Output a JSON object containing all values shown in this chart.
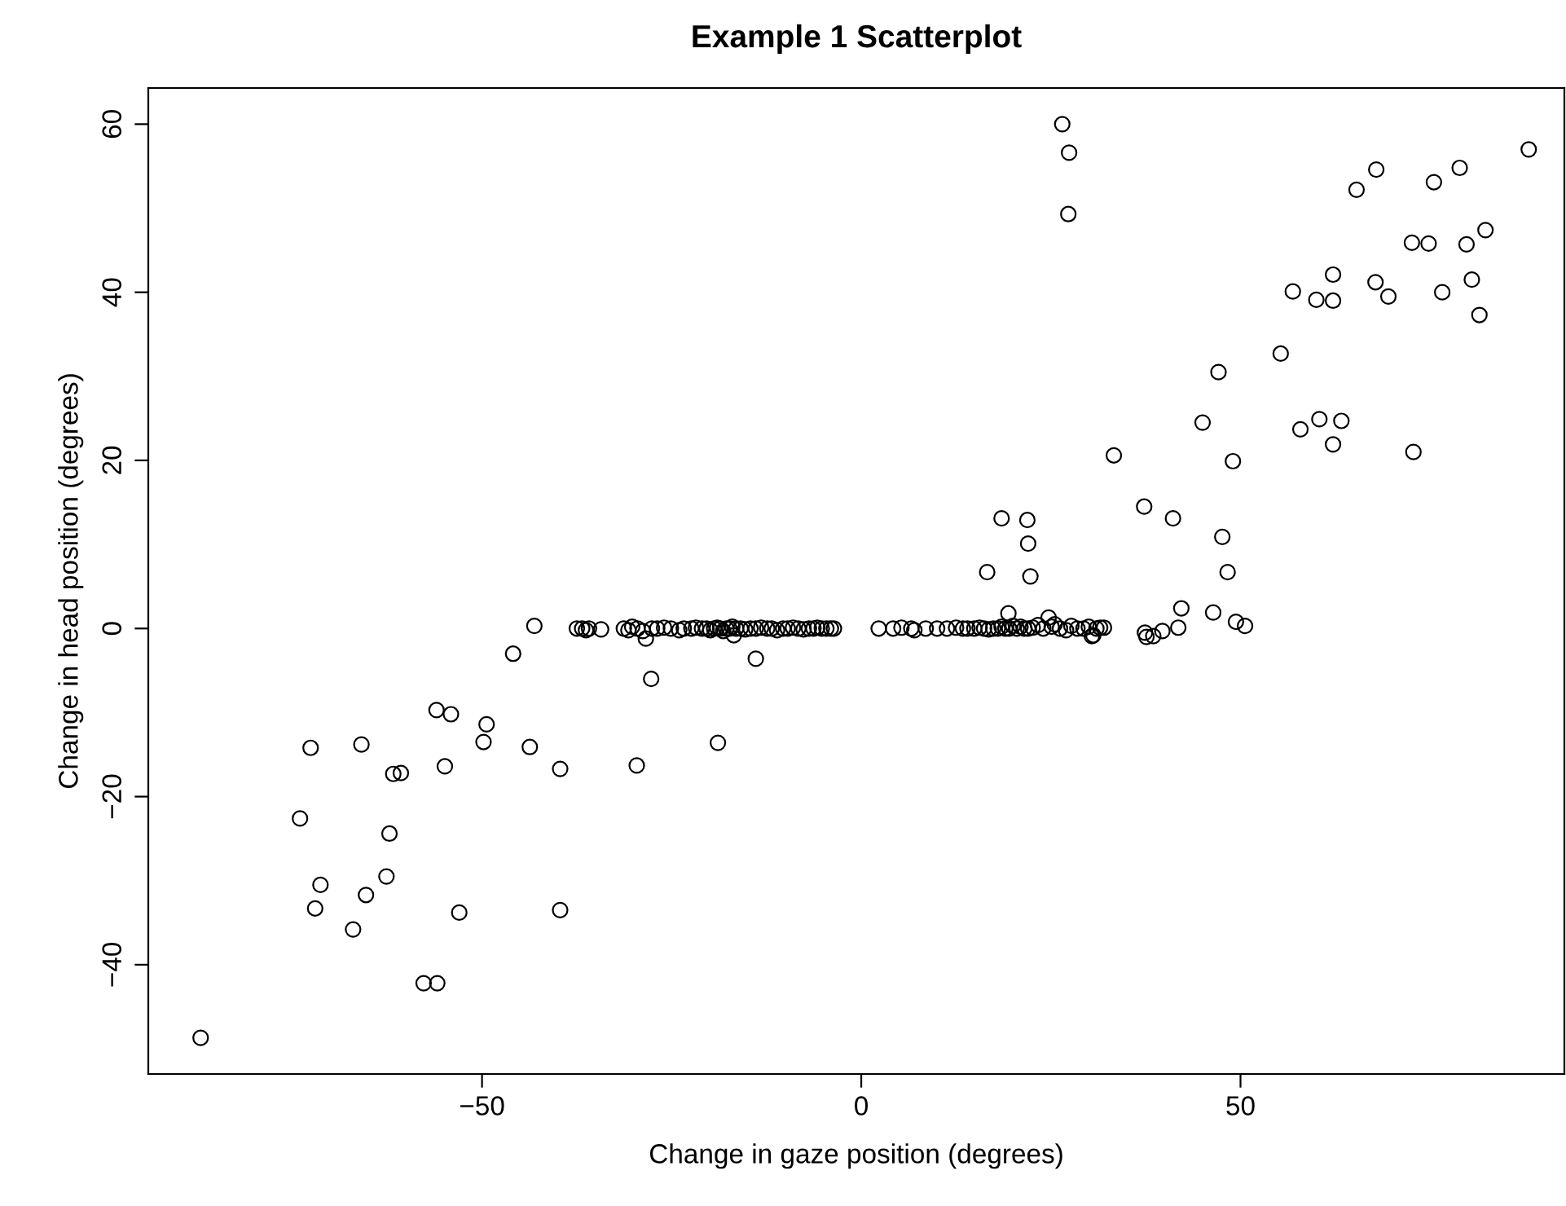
{
  "chart_data": {
    "type": "scatter",
    "title": "Example 1 Scatterplot",
    "xlabel": "Change in gaze position (degrees)",
    "ylabel": "Change in head position (degrees)",
    "xlim": [
      -94.0,
      92.7
    ],
    "ylim": [
      -53.0,
      64.3
    ],
    "xticks": [
      {
        "value": -50,
        "label": "−50"
      },
      0,
      50
    ],
    "yticks": [
      {
        "value": -40,
        "label": "−40"
      },
      {
        "value": -20,
        "label": "−20"
      },
      0,
      20,
      40,
      60
    ],
    "grid": false,
    "marker": "circle",
    "series": [
      {
        "color": "#000000",
        "x": [
          -87.1,
          -72.6,
          -65.9,
          -74.0,
          -71.3,
          -72.0,
          -65.3,
          -67.0,
          -62.6,
          -62.2,
          -61.7,
          -60.7,
          -57.7,
          -55.9,
          -56.0,
          -54.1,
          -54.9,
          -53.0,
          -49.4,
          -49.8,
          -43.7,
          -39.7,
          -39.7,
          -45.9,
          -43.1,
          -37.5,
          -36.8,
          -36.3,
          -35.9,
          -34.3,
          -30.7,
          -29.6,
          -28.4,
          -27.7,
          -18.9,
          -16.8,
          -13.9,
          -31.3,
          -30.2,
          -29.5,
          -28.8,
          -27.6,
          -26.9,
          -26.0,
          -25.1,
          -24.0,
          -23.4,
          -22.4,
          -21.8,
          -21.0,
          -20.4,
          -19.9,
          -19.4,
          -19.0,
          -18.6,
          -18.2,
          -17.8,
          -17.4,
          -17.0,
          -16.5,
          -15.9,
          -15.3,
          -14.6,
          -13.9,
          -13.2,
          -12.4,
          -11.8,
          -11.1,
          -10.3,
          -9.7,
          -9.0,
          -8.3,
          -7.6,
          -6.9,
          -6.3,
          -5.8,
          -5.2,
          -4.6,
          -4.0,
          -3.6,
          2.3,
          4.2,
          5.3,
          6.6,
          7.0,
          8.5,
          10.0,
          11.3,
          12.5,
          13.4,
          14.0,
          14.9,
          15.6,
          16.2,
          16.8,
          17.4,
          18.0,
          18.5,
          19.0,
          19.5,
          20.0,
          20.5,
          21.0,
          21.5,
          22.0,
          22.6,
          23.3,
          24.0,
          25.1,
          26.2,
          27.0,
          27.7,
          28.5,
          29.3,
          30.0,
          31.0,
          32.0,
          19.4,
          24.7,
          25.5,
          30.4,
          26.5,
          27.4,
          27.3,
          88.0,
          67.9,
          65.3,
          75.5,
          78.9,
          72.6,
          74.8,
          79.8,
          82.3,
          62.2,
          56.9,
          60.0,
          62.2,
          67.8,
          69.5,
          76.6,
          80.5,
          81.5,
          55.3,
          47.1,
          45.0,
          57.9,
          60.4,
          63.3,
          62.2,
          72.8,
          33.3,
          49.0,
          37.3,
          41.1,
          47.6,
          48.3,
          18.5,
          21.9,
          22.0,
          16.6,
          22.3,
          42.2,
          46.4,
          49.4,
          50.6,
          41.8,
          37.4,
          38.5,
          39.7,
          37.6,
          31.5,
          30.6
        ],
        "values": [
          -48.7,
          -14.2,
          -13.8,
          -22.6,
          -30.5,
          -33.3,
          -31.7,
          -35.8,
          -29.5,
          -24.4,
          -17.3,
          -17.2,
          -42.2,
          -42.2,
          -9.7,
          -10.2,
          -16.4,
          -33.8,
          -11.4,
          -13.5,
          -14.1,
          -16.7,
          -33.5,
          -3.0,
          0.3,
          0,
          0,
          -0.2,
          0,
          -0.1,
          -0.2,
          -16.3,
          -1.2,
          -6.0,
          -13.6,
          -0.8,
          -3.6,
          0,
          0.2,
          0,
          -0.3,
          0,
          0,
          0.1,
          0,
          -0.2,
          0,
          0,
          0.1,
          0,
          0,
          -0.2,
          0,
          0.1,
          0,
          -0.3,
          0,
          0,
          0.2,
          0,
          0,
          -0.1,
          0,
          0,
          0.1,
          0,
          0,
          -0.2,
          0,
          0,
          0.1,
          0,
          -0.1,
          0,
          0,
          0.1,
          0,
          0,
          0,
          0,
          0,
          0,
          0.1,
          0,
          -0.2,
          0,
          0,
          0,
          0.1,
          0,
          0,
          0,
          0.1,
          0,
          -0.1,
          0,
          0,
          0.2,
          0,
          0,
          0.3,
          0,
          0.2,
          0,
          0,
          0.1,
          0.4,
          0,
          0.2,
          0,
          -0.2,
          0.3,
          0,
          0,
          0.2,
          0,
          0.1,
          1.8,
          1.3,
          0.5,
          -0.9,
          60.0,
          56.6,
          49.3,
          57.0,
          54.6,
          52.2,
          53.1,
          54.8,
          45.9,
          45.8,
          45.7,
          47.4,
          42.1,
          40.1,
          39.1,
          39.0,
          41.2,
          39.5,
          40.0,
          41.5,
          37.3,
          32.7,
          30.5,
          24.5,
          23.7,
          24.9,
          24.7,
          21.9,
          21.0,
          20.6,
          19.9,
          14.5,
          13.1,
          10.9,
          6.7,
          13.1,
          12.9,
          10.1,
          6.7,
          6.2,
          2.4,
          1.9,
          0.8,
          0.3,
          0.1,
          -0.5,
          -0.9,
          -0.3,
          -1.0,
          0.1,
          -0.8
        ]
      }
    ]
  }
}
